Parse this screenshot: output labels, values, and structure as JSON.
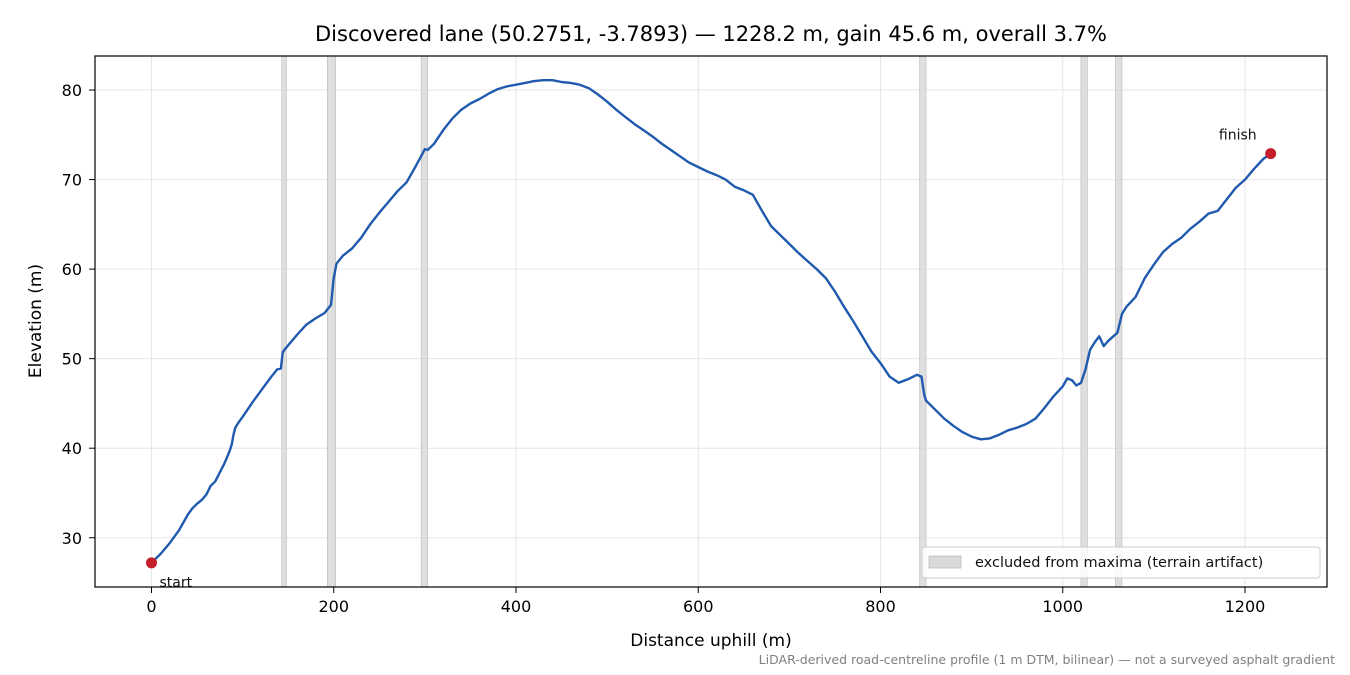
{
  "chart_data": {
    "type": "line",
    "title": "Discovered lane (50.2751, -3.7893) — 1228.2 m, gain 45.6 m, overall 3.7%",
    "xlabel": "Distance uphill (m)",
    "ylabel": "Elevation (m)",
    "xlim": [
      -62,
      1290
    ],
    "ylim": [
      24.5,
      83.8
    ],
    "xticks": [
      0,
      200,
      400,
      600,
      800,
      1000,
      1200
    ],
    "yticks": [
      30,
      40,
      50,
      60,
      70,
      80
    ],
    "grid": true,
    "line_color": "#1f5aae",
    "marker_color": "#c41e2a",
    "band_color": "#d9d9d9",
    "series": [
      {
        "x": [
          0,
          10,
          20,
          30,
          40,
          45,
          50,
          55,
          60,
          65,
          70,
          75,
          80,
          85,
          88,
          90,
          92,
          95,
          100,
          110,
          120,
          130,
          138,
          142,
          144,
          146,
          150,
          160,
          170,
          180,
          190,
          197,
          200,
          203,
          206,
          210,
          220,
          230,
          240,
          250,
          260,
          270,
          280,
          290,
          298,
          300,
          303,
          310,
          320,
          330,
          340,
          350,
          360,
          370,
          380,
          390,
          400,
          410,
          420,
          430,
          440,
          450,
          460,
          470,
          480,
          490,
          500,
          510,
          520,
          530,
          540,
          550,
          560,
          570,
          580,
          590,
          600,
          610,
          620,
          630,
          640,
          650,
          660,
          670,
          680,
          690,
          700,
          710,
          720,
          730,
          740,
          750,
          760,
          770,
          780,
          790,
          800,
          810,
          820,
          830,
          840,
          845,
          848,
          850,
          860,
          870,
          880,
          890,
          900,
          910,
          920,
          930,
          940,
          950,
          960,
          970,
          980,
          990,
          1000,
          1005,
          1010,
          1015,
          1020,
          1025,
          1030,
          1035,
          1040,
          1045,
          1050,
          1060,
          1065,
          1070,
          1080,
          1090,
          1100,
          1110,
          1120,
          1130,
          1140,
          1150,
          1160,
          1170,
          1180,
          1190,
          1200,
          1210,
          1220,
          1228.2
        ],
        "y": [
          27.2,
          28.2,
          29.4,
          30.8,
          32.6,
          33.3,
          33.8,
          34.2,
          34.8,
          35.8,
          36.3,
          37.3,
          38.3,
          39.5,
          40.4,
          41.5,
          42.3,
          42.8,
          43.5,
          45.0,
          46.4,
          47.8,
          48.8,
          48.9,
          50.7,
          51.0,
          51.5,
          52.7,
          53.8,
          54.5,
          55.1,
          56.0,
          59.0,
          60.6,
          61.0,
          61.5,
          62.3,
          63.5,
          65.0,
          66.3,
          67.5,
          68.7,
          69.7,
          71.5,
          73.0,
          73.4,
          73.3,
          74.0,
          75.5,
          76.8,
          77.8,
          78.5,
          79.0,
          79.6,
          80.1,
          80.4,
          80.6,
          80.8,
          81.0,
          81.1,
          81.1,
          80.9,
          80.8,
          80.6,
          80.2,
          79.5,
          78.7,
          77.8,
          77.0,
          76.2,
          75.5,
          74.8,
          74.0,
          73.3,
          72.6,
          71.9,
          71.4,
          70.9,
          70.5,
          70.0,
          69.2,
          68.8,
          68.3,
          66.5,
          64.8,
          63.8,
          62.8,
          61.8,
          60.9,
          60.0,
          59.0,
          57.5,
          55.8,
          54.2,
          52.5,
          50.8,
          49.5,
          48.0,
          47.3,
          47.7,
          48.2,
          48.0,
          46.0,
          45.3,
          44.3,
          43.3,
          42.5,
          41.8,
          41.3,
          41.0,
          41.1,
          41.5,
          42.0,
          42.3,
          42.7,
          43.3,
          44.5,
          45.8,
          46.9,
          47.8,
          47.6,
          47.0,
          47.3,
          48.8,
          51.0,
          51.8,
          52.5,
          51.4,
          52.0,
          52.9,
          55.0,
          55.8,
          56.9,
          59.0,
          60.5,
          61.9,
          62.8,
          63.5,
          64.5,
          65.3,
          66.2,
          66.5,
          67.8,
          69.1,
          70.0,
          71.2,
          72.3,
          72.9
        ]
      }
    ],
    "excluded_bands": [
      [
        143,
        148
      ],
      [
        193,
        202
      ],
      [
        296,
        303
      ],
      [
        843,
        850
      ],
      [
        1020,
        1027
      ],
      [
        1058,
        1065
      ]
    ],
    "points": [
      {
        "x": 0,
        "y": 27.2,
        "label": "start"
      },
      {
        "x": 1228.2,
        "y": 72.9,
        "label": "finish"
      }
    ],
    "legend": {
      "label": "excluded from maxima (terrain artifact)",
      "placement": "lower-right"
    },
    "footnote": "LiDAR-derived road-centreline profile (1 m DTM, bilinear) — not a surveyed asphalt gradient"
  }
}
